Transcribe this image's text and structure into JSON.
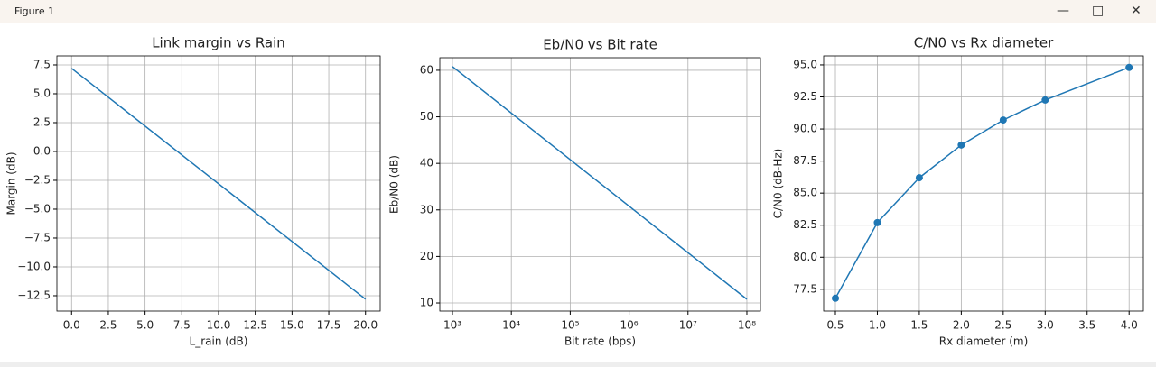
{
  "window_title": "Figure 1",
  "chart_data": [
    {
      "type": "line",
      "title": "Link margin vs Rain",
      "xlabel": "L_rain (dB)",
      "ylabel": "Margin (dB)",
      "x": [
        0,
        20
      ],
      "y": [
        7.2,
        -12.8
      ],
      "color": "#1f77b4",
      "markers": false,
      "grid": true,
      "xscale": "linear",
      "xlim": [
        -1,
        21
      ],
      "ylim": [
        -13.83,
        8.28
      ],
      "xticks": [
        {
          "value": 0,
          "label": "0.0"
        },
        2.5,
        {
          "value": 5,
          "label": "5.0"
        },
        7.5,
        {
          "value": 10,
          "label": "10.0"
        },
        12.5,
        {
          "value": 15,
          "label": "15.0"
        },
        17.5,
        {
          "value": 20,
          "label": "20.0"
        }
      ],
      "yticks": [
        {
          "value": -12.5,
          "label": "−12.5"
        },
        {
          "value": -10,
          "label": "−10.0"
        },
        {
          "value": -7.5,
          "label": "−7.5"
        },
        {
          "value": -5,
          "label": "−5.0"
        },
        {
          "value": -2.5,
          "label": "−2.5"
        },
        {
          "value": 0,
          "label": "0.0"
        },
        2.5,
        {
          "value": 5,
          "label": "5.0"
        },
        7.5
      ]
    },
    {
      "type": "line",
      "title": "Eb/N0 vs Bit rate",
      "xlabel": "Bit rate (bps)",
      "ylabel": "Eb/N0 (dB)",
      "x": [
        1000,
        100000000
      ],
      "y": [
        60.8,
        10.8
      ],
      "color": "#1f77b4",
      "markers": false,
      "grid": true,
      "xscale": "log",
      "xlim": [
        610,
        170000000
      ],
      "ylim": [
        8.26,
        62.7
      ],
      "xticks": [
        {
          "value": 1000,
          "label": "10³"
        },
        {
          "value": 10000,
          "label": "10⁴"
        },
        {
          "value": 100000,
          "label": "10⁵"
        },
        {
          "value": 1000000,
          "label": "10⁶"
        },
        {
          "value": 10000000,
          "label": "10⁷"
        },
        {
          "value": 100000000,
          "label": "10⁸"
        }
      ],
      "yticks": [
        10,
        20,
        30,
        40,
        50,
        60
      ]
    },
    {
      "type": "line",
      "title": "C/N0 vs Rx diameter",
      "xlabel": "Rx diameter (m)",
      "ylabel": "C/N0 (dB-Hz)",
      "x": [
        0.5,
        1,
        1.5,
        2,
        2.5,
        3,
        4
      ],
      "y": [
        76.8,
        82.7,
        86.2,
        88.75,
        90.7,
        92.26,
        94.8
      ],
      "color": "#1f77b4",
      "markers": true,
      "grid": true,
      "xscale": "linear",
      "xlim": [
        0.36,
        4.17
      ],
      "ylim": [
        75.8,
        95.7
      ],
      "xticks": [
        0.5,
        {
          "value": 1,
          "label": "1.0"
        },
        1.5,
        {
          "value": 2,
          "label": "2.0"
        },
        2.5,
        {
          "value": 3,
          "label": "3.0"
        },
        3.5,
        {
          "value": 4,
          "label": "4.0"
        }
      ],
      "yticks": [
        77.5,
        {
          "value": 80,
          "label": "80.0"
        },
        82.5,
        {
          "value": 85,
          "label": "85.0"
        },
        87.5,
        {
          "value": 90,
          "label": "90.0"
        },
        92.5,
        {
          "value": 95,
          "label": "95.0"
        }
      ]
    }
  ]
}
